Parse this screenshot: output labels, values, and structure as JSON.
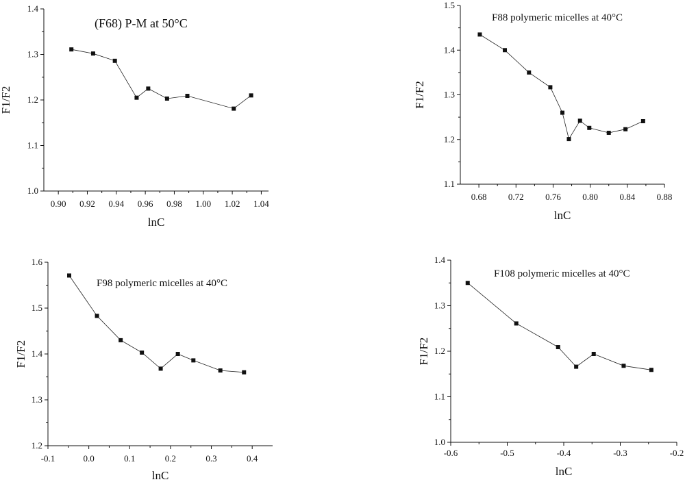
{
  "chart_data": [
    {
      "type": "line",
      "title": "(F68) P-M  at 50°C",
      "xlabel": "lnC",
      "ylabel": "F1/F2",
      "xlim": [
        0.89,
        1.045
      ],
      "ylim": [
        1.0,
        1.4
      ],
      "xticks": [
        0.9,
        0.92,
        0.94,
        0.96,
        0.98,
        1.0,
        1.02,
        1.04
      ],
      "xtick_labels": [
        "0.90",
        "0.92",
        "0.94",
        "0.96",
        "0.98",
        "1.00",
        "1.02",
        "1.04"
      ],
      "yticks": [
        1.0,
        1.1,
        1.2,
        1.3,
        1.4
      ],
      "ytick_labels": [
        "1.0",
        "1.1",
        "1.2",
        "1.3",
        "1.4"
      ],
      "grid": false,
      "x": [
        0.909,
        0.924,
        0.939,
        0.954,
        0.962,
        0.975,
        0.989,
        1.021,
        1.033
      ],
      "y": [
        1.311,
        1.302,
        1.286,
        1.205,
        1.225,
        1.203,
        1.209,
        1.181,
        1.21
      ]
    },
    {
      "type": "line",
      "title": "F88 polymeric micelles at 40°C",
      "xlabel": "lnC",
      "ylabel": "F1/F2",
      "xlim": [
        0.66,
        0.88
      ],
      "ylim": [
        1.1,
        1.5
      ],
      "xticks": [
        0.68,
        0.72,
        0.76,
        0.8,
        0.84,
        0.88
      ],
      "xtick_labels": [
        "0.68",
        "0.72",
        "0.76",
        "0.80",
        "0.84",
        "0.88"
      ],
      "yticks": [
        1.1,
        1.2,
        1.3,
        1.4,
        1.5
      ],
      "ytick_labels": [
        "1.1",
        "1.2",
        "1.3",
        "1.4",
        "1.5"
      ],
      "grid": false,
      "x": [
        0.681,
        0.708,
        0.734,
        0.757,
        0.77,
        0.777,
        0.789,
        0.799,
        0.82,
        0.838,
        0.857
      ],
      "y": [
        1.435,
        1.4,
        1.35,
        1.317,
        1.26,
        1.201,
        1.242,
        1.226,
        1.215,
        1.223,
        1.241
      ]
    },
    {
      "type": "line",
      "title": "F98 polymeric micelles at 40°C",
      "xlabel": "lnC",
      "ylabel": "F1/F2",
      "xlim": [
        -0.1,
        0.45
      ],
      "ylim": [
        1.2,
        1.6
      ],
      "xticks": [
        -0.1,
        0.0,
        0.1,
        0.2,
        0.3,
        0.4
      ],
      "xtick_labels": [
        "-0.1",
        "0.0",
        "0.1",
        "0.2",
        "0.3",
        "0.4"
      ],
      "yticks": [
        1.2,
        1.3,
        1.4,
        1.5,
        1.6
      ],
      "ytick_labels": [
        "1.2",
        "1.3",
        "1.4",
        "1.5",
        "1.6"
      ],
      "grid": false,
      "x": [
        -0.048,
        0.02,
        0.078,
        0.13,
        0.176,
        0.218,
        0.256,
        0.322,
        0.38
      ],
      "y": [
        1.571,
        1.483,
        1.43,
        1.403,
        1.368,
        1.4,
        1.386,
        1.364,
        1.36
      ]
    },
    {
      "type": "line",
      "title": "F108 polymeric micelles at 40°C",
      "xlabel": "lnC",
      "ylabel": "F1/F2",
      "xlim": [
        -0.6,
        -0.2
      ],
      "ylim": [
        1.0,
        1.4
      ],
      "xticks": [
        -0.6,
        -0.5,
        -0.4,
        -0.3,
        -0.2
      ],
      "xtick_labels": [
        "-0.6",
        "-0.5",
        "-0.4",
        "-0.3",
        "-0.2"
      ],
      "yticks": [
        1.0,
        1.1,
        1.2,
        1.3,
        1.4
      ],
      "ytick_labels": [
        "1.0",
        "1.1",
        "1.2",
        "1.3",
        "1.4"
      ],
      "grid": false,
      "x": [
        -0.57,
        -0.484,
        -0.41,
        -0.378,
        -0.347,
        -0.294,
        -0.245
      ],
      "y": [
        1.35,
        1.261,
        1.209,
        1.166,
        1.194,
        1.168,
        1.159
      ]
    }
  ]
}
